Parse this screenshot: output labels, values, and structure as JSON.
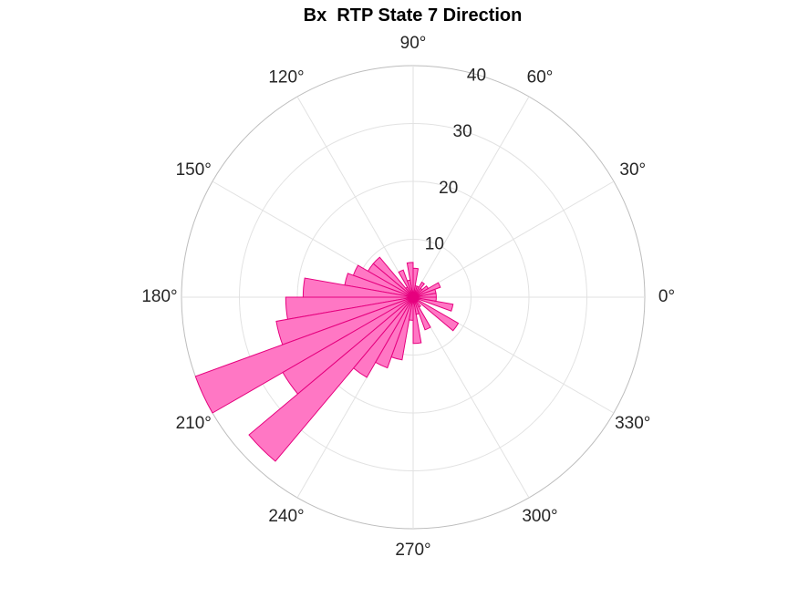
{
  "title": "Bx  RTP State 7 Direction",
  "colors": {
    "face": "#ff77c4",
    "edge": "#e6007e"
  },
  "chart_data": {
    "type": "polar-histogram",
    "title": "Bx  RTP State 7 Direction",
    "theta_unit": "degrees",
    "theta_ticks": [
      0,
      30,
      60,
      90,
      120,
      150,
      180,
      210,
      240,
      270,
      300,
      330
    ],
    "theta_tick_labels": [
      "0°",
      "30°",
      "60°",
      "90°",
      "120°",
      "150°",
      "180°",
      "210°",
      "240°",
      "270°",
      "300°",
      "330°"
    ],
    "r_ticks": [
      10,
      20,
      30,
      40
    ],
    "r_tick_labels": [
      "10",
      "20",
      "30",
      "40"
    ],
    "rlim": [
      0,
      40
    ],
    "grid": true,
    "bin_width_deg": 10,
    "bin_edges_start": [
      0,
      10,
      20,
      30,
      40,
      50,
      60,
      70,
      80,
      90,
      100,
      110,
      120,
      130,
      140,
      150,
      160,
      170,
      180,
      190,
      200,
      210,
      220,
      230,
      240,
      250,
      260,
      270,
      280,
      290,
      300,
      310,
      320,
      330,
      340,
      350
    ],
    "counts": [
      4,
      4,
      5,
      3,
      2,
      3,
      2,
      2,
      5,
      6,
      3,
      5,
      2,
      9,
      9,
      11,
      12,
      19,
      22,
      24,
      40,
      26,
      37,
      16,
      13,
      11,
      4,
      8,
      3,
      6,
      2,
      1,
      9,
      1,
      7,
      4
    ]
  }
}
